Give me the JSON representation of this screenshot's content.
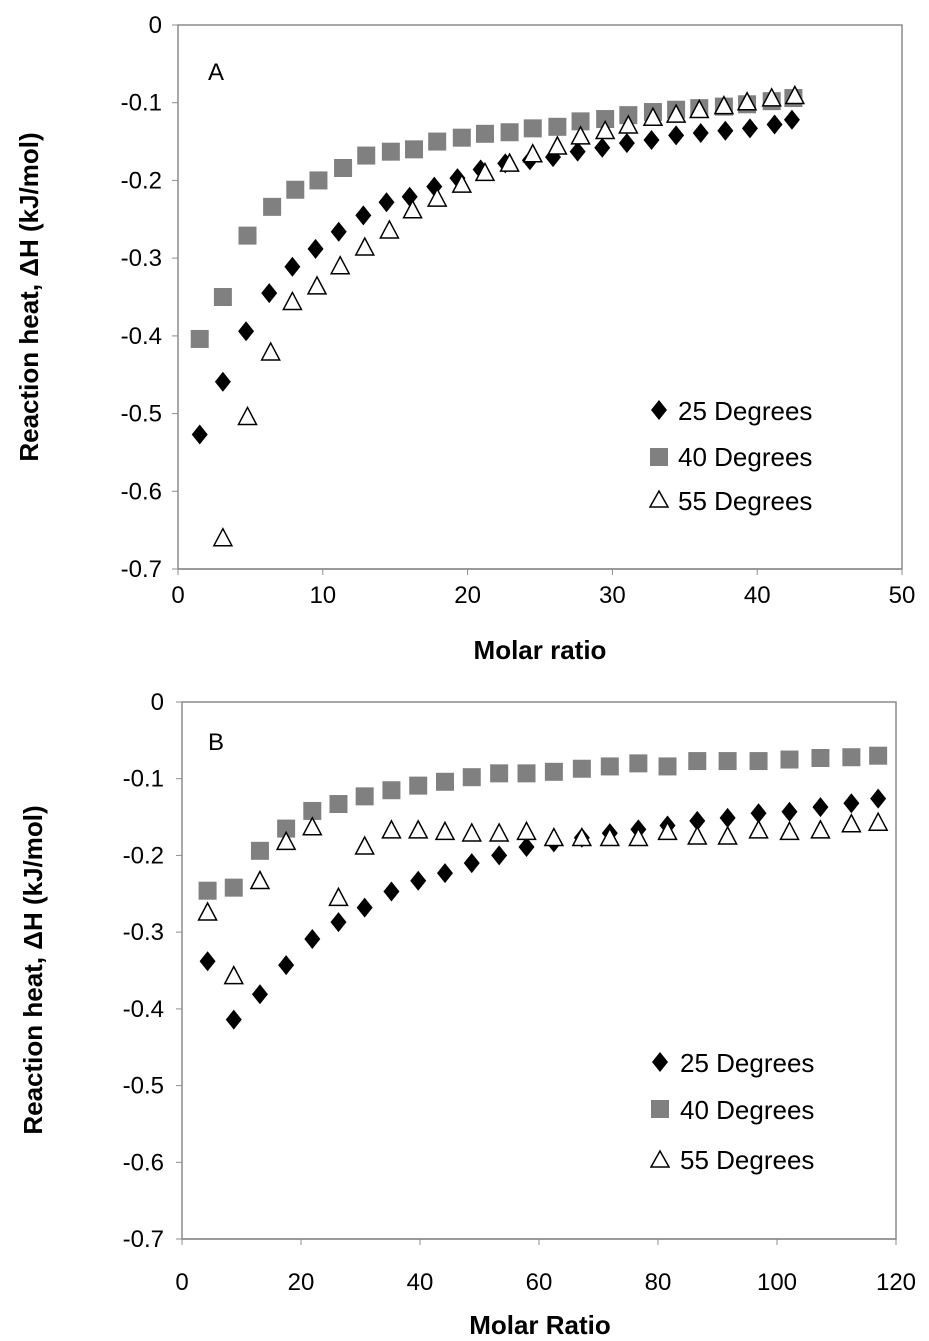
{
  "colors": {
    "s25": "#000000",
    "s40": "#808080",
    "s55_stroke": "#000000",
    "s55_fill": "#ffffff"
  },
  "chart_data": [
    {
      "type": "scatter",
      "panel_label": "A",
      "xlabel": "Molar ratio",
      "ylabel": "Reaction heat, ΔH (kJ/mol)",
      "xlim": [
        0,
        50
      ],
      "ylim": [
        -0.7,
        0
      ],
      "x_ticks": [
        0,
        10,
        20,
        30,
        40,
        50
      ],
      "y_ticks": [
        0,
        -0.1,
        -0.2,
        -0.3,
        -0.4,
        -0.5,
        -0.6,
        -0.7
      ],
      "x_tick_labels": [
        "0",
        "10",
        "20",
        "30",
        "40",
        "50"
      ],
      "y_tick_labels": [
        "0",
        "-0.1",
        "-0.2",
        "-0.3",
        "-0.4",
        "-0.5",
        "-0.6",
        "-0.7"
      ],
      "grid": false,
      "legend_position": "bottom-right",
      "series": [
        {
          "name": "25 Degrees",
          "marker": "diamond",
          "x": [
            1.5,
            3.1,
            4.7,
            6.3,
            7.9,
            9.5,
            11.1,
            12.8,
            14.4,
            16.0,
            17.7,
            19.3,
            20.9,
            22.6,
            24.3,
            25.9,
            27.6,
            29.3,
            31.0,
            32.7,
            34.4,
            36.1,
            37.8,
            39.5,
            41.2,
            42.4
          ],
          "y": [
            -0.527,
            -0.459,
            -0.394,
            -0.345,
            -0.311,
            -0.288,
            -0.266,
            -0.245,
            -0.228,
            -0.221,
            -0.208,
            -0.197,
            -0.186,
            -0.178,
            -0.174,
            -0.17,
            -0.163,
            -0.158,
            -0.152,
            -0.148,
            -0.142,
            -0.139,
            -0.136,
            -0.133,
            -0.128,
            -0.122
          ]
        },
        {
          "name": "40 Degrees",
          "marker": "square",
          "x": [
            1.5,
            3.1,
            4.8,
            6.5,
            8.1,
            9.7,
            11.4,
            13.0,
            14.7,
            16.3,
            17.9,
            19.6,
            21.2,
            22.9,
            24.5,
            26.2,
            27.8,
            29.5,
            31.1,
            32.8,
            34.4,
            36.0,
            37.7,
            39.3,
            41.0,
            42.5
          ],
          "y": [
            -0.404,
            -0.35,
            -0.271,
            -0.234,
            -0.212,
            -0.2,
            -0.184,
            -0.168,
            -0.163,
            -0.16,
            -0.15,
            -0.145,
            -0.14,
            -0.138,
            -0.133,
            -0.131,
            -0.124,
            -0.121,
            -0.116,
            -0.112,
            -0.109,
            -0.107,
            -0.105,
            -0.102,
            -0.098,
            -0.094
          ]
        },
        {
          "name": "55 Degrees",
          "marker": "triangle-open",
          "x": [
            3.1,
            4.8,
            6.4,
            7.9,
            9.6,
            11.2,
            12.9,
            14.6,
            16.2,
            17.9,
            19.6,
            21.2,
            22.9,
            24.5,
            26.2,
            27.8,
            29.5,
            31.1,
            32.8,
            34.4,
            36.0,
            37.7,
            39.3,
            41.0,
            42.6
          ],
          "y": [
            -0.661,
            -0.505,
            -0.422,
            -0.357,
            -0.337,
            -0.311,
            -0.287,
            -0.265,
            -0.239,
            -0.224,
            -0.206,
            -0.191,
            -0.179,
            -0.167,
            -0.157,
            -0.144,
            -0.137,
            -0.13,
            -0.12,
            -0.116,
            -0.11,
            -0.105,
            -0.1,
            -0.095,
            -0.092
          ]
        }
      ]
    },
    {
      "type": "scatter",
      "panel_label": "B",
      "xlabel": "Molar Ratio",
      "ylabel": "Reaction heat, ΔH (kJ/mol)",
      "xlim": [
        0,
        120
      ],
      "ylim": [
        -0.7,
        0
      ],
      "x_ticks": [
        0,
        20,
        40,
        60,
        80,
        100,
        120
      ],
      "y_ticks": [
        0,
        -0.1,
        -0.2,
        -0.3,
        -0.4,
        -0.5,
        -0.6,
        -0.7
      ],
      "x_tick_labels": [
        "0",
        "20",
        "40",
        "60",
        "80",
        "100",
        "120"
      ],
      "y_tick_labels": [
        "0",
        "-0.1",
        "-0.2",
        "-0.3",
        "-0.4",
        "-0.5",
        "-0.6",
        "-0.7"
      ],
      "grid": false,
      "legend_position": "bottom-right",
      "series": [
        {
          "name": "25 Degrees",
          "marker": "diamond",
          "x": [
            4.3,
            8.7,
            13.1,
            17.5,
            21.9,
            26.3,
            30.7,
            35.2,
            39.7,
            44.2,
            48.7,
            53.3,
            57.9,
            62.5,
            67.2,
            71.9,
            76.7,
            81.6,
            86.6,
            91.7,
            96.9,
            102.1,
            107.3,
            112.5,
            117.0
          ],
          "y": [
            -0.338,
            -0.414,
            -0.381,
            -0.343,
            -0.309,
            -0.287,
            -0.268,
            -0.247,
            -0.233,
            -0.223,
            -0.21,
            -0.2,
            -0.189,
            -0.183,
            -0.177,
            -0.171,
            -0.166,
            -0.161,
            -0.155,
            -0.151,
            -0.145,
            -0.143,
            -0.137,
            -0.132,
            -0.126
          ]
        },
        {
          "name": "40 Degrees",
          "marker": "square",
          "x": [
            4.3,
            8.7,
            13.1,
            17.5,
            21.9,
            26.3,
            30.7,
            35.2,
            39.7,
            44.2,
            48.7,
            53.3,
            57.9,
            62.5,
            67.2,
            71.9,
            76.7,
            81.6,
            86.6,
            91.7,
            96.9,
            102.1,
            107.3,
            112.5,
            117.0
          ],
          "y": [
            -0.246,
            -0.242,
            -0.194,
            -0.165,
            -0.142,
            -0.133,
            -0.123,
            -0.115,
            -0.109,
            -0.104,
            -0.098,
            -0.093,
            -0.093,
            -0.091,
            -0.087,
            -0.084,
            -0.08,
            -0.084,
            -0.077,
            -0.077,
            -0.077,
            -0.075,
            -0.073,
            -0.072,
            -0.07
          ]
        },
        {
          "name": "55 Degrees",
          "marker": "triangle-open",
          "x": [
            4.3,
            8.7,
            13.1,
            17.5,
            21.9,
            26.3,
            30.7,
            35.2,
            39.7,
            44.2,
            48.7,
            53.3,
            57.9,
            62.5,
            67.2,
            71.9,
            76.7,
            81.6,
            86.6,
            91.7,
            96.9,
            102.1,
            107.3,
            112.5,
            117.0
          ],
          "y": [
            -0.275,
            -0.358,
            -0.234,
            -0.183,
            -0.164,
            -0.256,
            -0.189,
            -0.168,
            -0.168,
            -0.17,
            -0.172,
            -0.172,
            -0.17,
            -0.178,
            -0.178,
            -0.178,
            -0.178,
            -0.17,
            -0.176,
            -0.176,
            -0.168,
            -0.17,
            -0.168,
            -0.16,
            -0.158
          ]
        }
      ]
    }
  ]
}
